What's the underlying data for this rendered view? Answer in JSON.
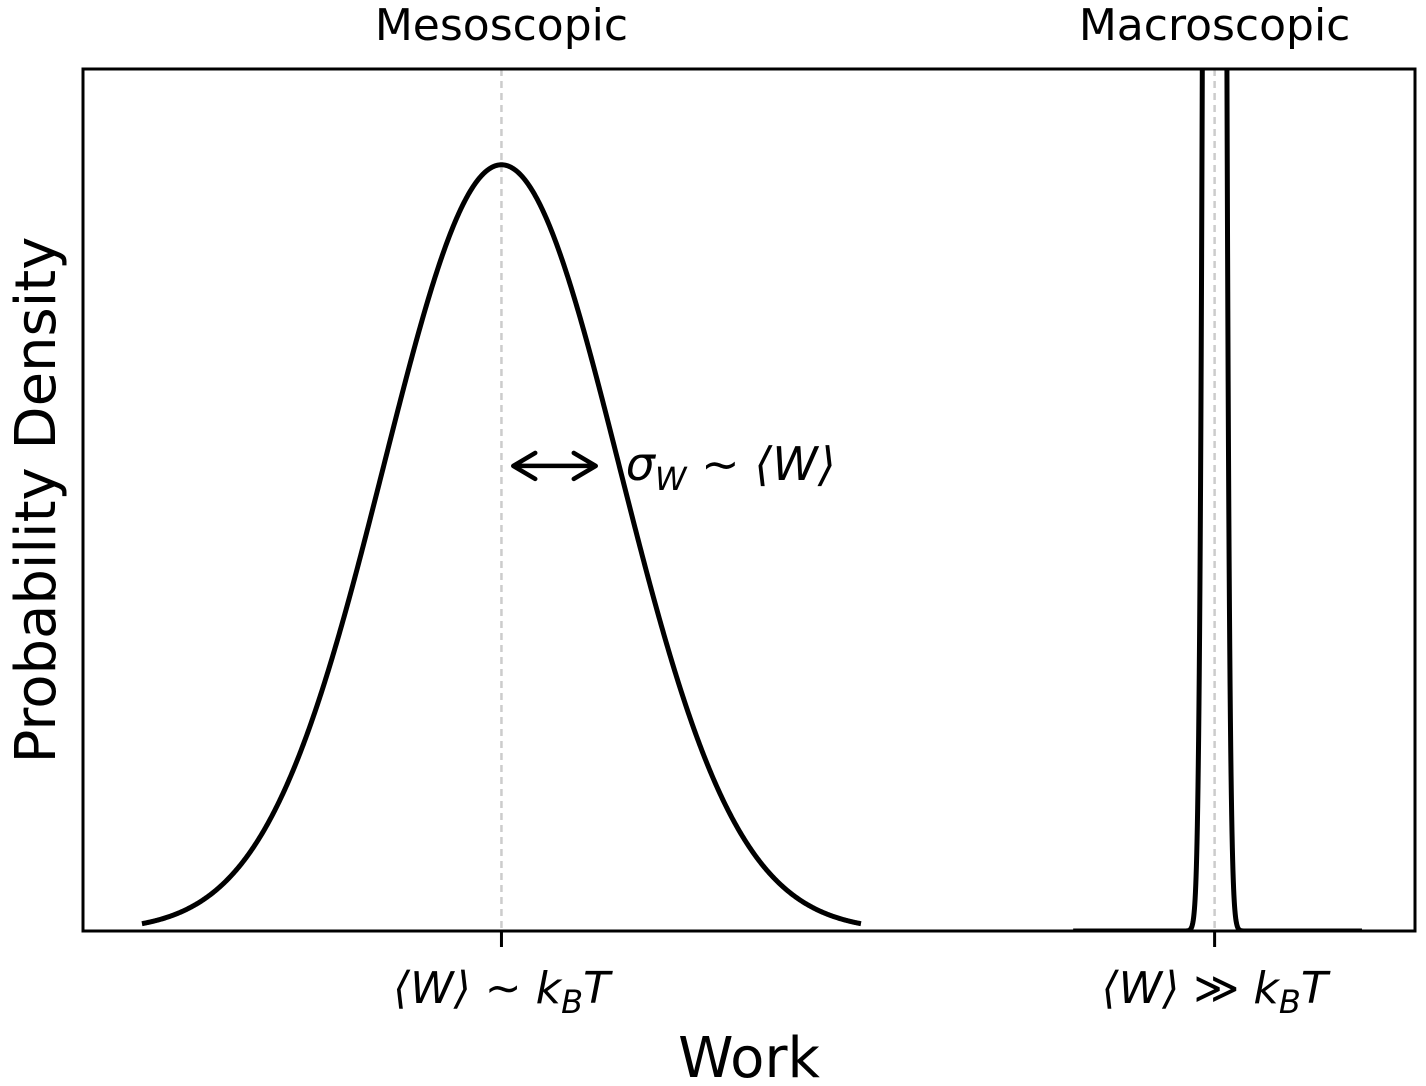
{
  "chart_data": {
    "type": "line",
    "xlabel": "Work",
    "ylabel": "Probability Density",
    "xlim": [
      -0.8,
      10.5
    ],
    "ylim": [
      0,
      1.125
    ],
    "grid": false,
    "y_ticks_shown": false,
    "line_color": "#000000",
    "mean_line_color": "#cccccc",
    "regimes": [
      {
        "label": "Mesoscopic",
        "tick_label": "⟨W⟩ ∼ k_B T",
        "tick_parts": [
          "⟨W⟩ ∼ k",
          "B",
          "T"
        ],
        "mean": 2.75,
        "sigma": 1.0,
        "peak": 1.0,
        "x_range": [
          -0.3,
          5.8
        ]
      },
      {
        "label": "Macroscopic",
        "tick_label": "⟨W⟩ ≫ k_B T",
        "tick_parts": [
          "⟨W⟩ ≫ k",
          "B",
          "T"
        ],
        "mean": 8.8,
        "sigma": 0.05,
        "peak": 10.0,
        "x_range": [
          7.6,
          10.05
        ]
      }
    ],
    "annotation": {
      "text": "σ_W ∼ ⟨W⟩",
      "parts": [
        "σ",
        "W",
        " ∼ ⟨W⟩"
      ],
      "arrow_x": [
        2.85,
        3.55
      ],
      "arrow_y": 0.607
    }
  }
}
